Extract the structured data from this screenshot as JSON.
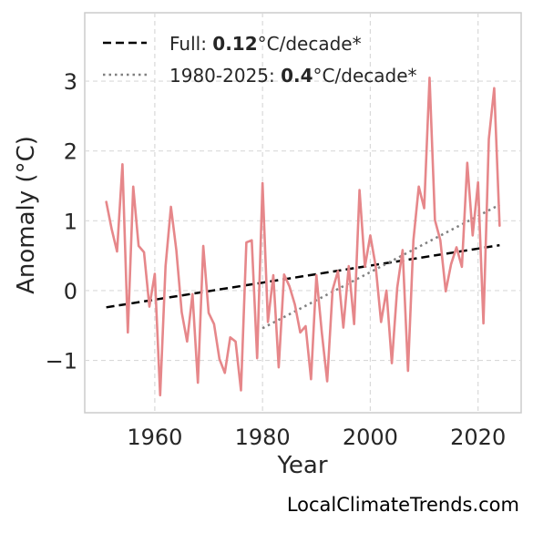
{
  "chart_data": {
    "type": "line",
    "xlabel": "Year",
    "ylabel": "Anomaly (°C)",
    "xlim": [
      1947,
      2028
    ],
    "ylim": [
      -1.75,
      3.98
    ],
    "x_ticks": [
      1960,
      1980,
      2000,
      2020
    ],
    "y_ticks": [
      -1,
      0,
      1,
      2,
      3
    ],
    "y_tick_labels": [
      "−1",
      "0",
      "1",
      "2",
      "3"
    ],
    "grid": true,
    "legend_placement": "top-left",
    "x": [
      1951,
      1952,
      1953,
      1954,
      1955,
      1956,
      1957,
      1958,
      1959,
      1960,
      1961,
      1962,
      1963,
      1964,
      1965,
      1966,
      1967,
      1968,
      1969,
      1970,
      1971,
      1972,
      1973,
      1974,
      1975,
      1976,
      1977,
      1978,
      1979,
      1980,
      1981,
      1982,
      1983,
      1984,
      1985,
      1986,
      1987,
      1988,
      1989,
      1990,
      1991,
      1992,
      1993,
      1994,
      1995,
      1996,
      1997,
      1998,
      1999,
      2000,
      2001,
      2002,
      2003,
      2004,
      2005,
      2006,
      2007,
      2008,
      2009,
      2010,
      2011,
      2012,
      2013,
      2014,
      2015,
      2016,
      2017,
      2018,
      2019,
      2020,
      2021,
      2022,
      2023,
      2024
    ],
    "series": [
      {
        "name": "",
        "color": "#e6878a",
        "values": [
          1.27,
          0.88,
          0.56,
          1.81,
          -0.6,
          1.49,
          0.64,
          0.55,
          -0.23,
          0.24,
          -1.5,
          0.35,
          1.2,
          0.58,
          -0.31,
          -0.73,
          -0.05,
          -1.32,
          0.64,
          -0.32,
          -0.48,
          -0.98,
          -1.18,
          -0.67,
          -0.73,
          -1.43,
          0.69,
          0.72,
          -0.97,
          1.54,
          -0.45,
          0.22,
          -1.1,
          0.23,
          0.06,
          -0.2,
          -0.6,
          -0.51,
          -1.27,
          0.22,
          -0.6,
          -1.3,
          0.01,
          0.28,
          -0.53,
          0.35,
          -0.48,
          1.44,
          0.34,
          0.79,
          0.35,
          -0.45,
          0.0,
          -1.04,
          0.04,
          0.58,
          -1.15,
          0.72,
          1.49,
          1.18,
          3.05,
          1.01,
          0.72,
          -0.01,
          0.38,
          0.62,
          0.34,
          1.83,
          0.79,
          1.55,
          -0.47,
          2.17,
          2.9,
          0.93
        ]
      },
      {
        "name": "Full",
        "color": "#000000",
        "style": "dashed",
        "x": [
          1951,
          2024
        ],
        "values": [
          -0.24,
          0.65
        ]
      },
      {
        "name": "1980-2025",
        "color": "#808080",
        "style": "dotted",
        "x": [
          1980,
          2024
        ],
        "values": [
          -0.54,
          1.23
        ]
      }
    ],
    "legend": [
      {
        "prefix": "Full: ",
        "rate": "0.12",
        "suffix": "°C/decade*"
      },
      {
        "prefix": "1980-2025: ",
        "rate": "0.4",
        "suffix": "°C/decade*"
      }
    ]
  },
  "watermark": "LocalClimateTrends.com"
}
